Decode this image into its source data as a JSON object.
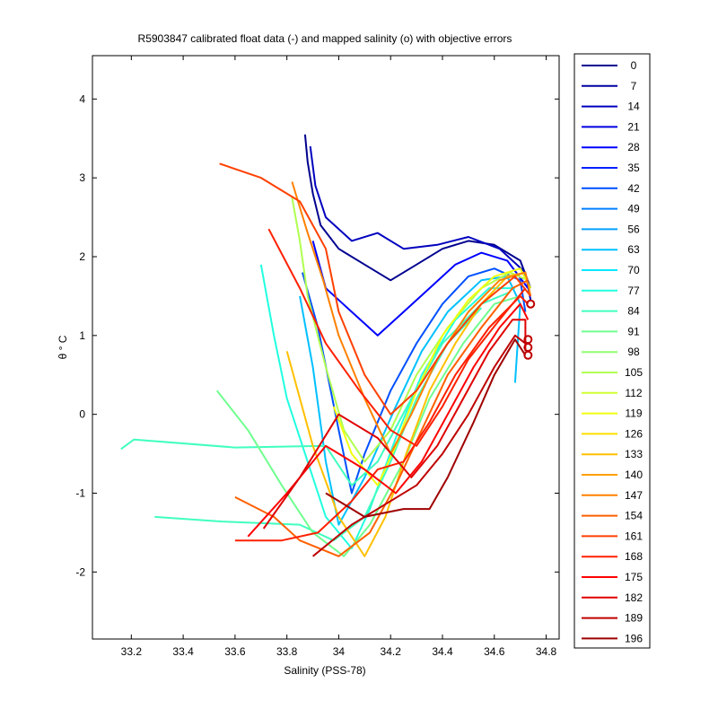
{
  "chart_data": {
    "type": "line",
    "title": "R5903847 calibrated float data (-) and mapped salinity (o) with objective errors",
    "xlabel": "Salinity (PSS-78)",
    "ylabel": "θ ° C",
    "xlim": [
      33.05,
      34.85
    ],
    "ylim": [
      -2.85,
      4.55
    ],
    "xticks": [
      33.2,
      33.4,
      33.6,
      33.8,
      34,
      34.2,
      34.4,
      34.6,
      34.8
    ],
    "yticks": [
      -2,
      -1,
      0,
      1,
      2,
      3,
      4
    ],
    "grid": false,
    "legend_position": "outside-right",
    "legend_entries": [
      "0",
      "7",
      "14",
      "21",
      "28",
      "35",
      "42",
      "49",
      "56",
      "63",
      "70",
      "77",
      "84",
      "91",
      "98",
      "105",
      "112",
      "119",
      "126",
      "133",
      "140",
      "147",
      "154",
      "161",
      "168",
      "175",
      "182",
      "189",
      "196"
    ],
    "legend_colors": [
      "#00008f",
      "#00009f",
      "#0000bf",
      "#0000df",
      "#0000ff",
      "#0020ff",
      "#0050ff",
      "#0080ff",
      "#00a0ff",
      "#00c0ff",
      "#00e8ff",
      "#20ffdf",
      "#40ffbf",
      "#70ff8f",
      "#90ff6f",
      "#b0ff4f",
      "#d0ff2f",
      "#f0ff0f",
      "#ffe000",
      "#ffc000",
      "#ffa000",
      "#ff8000",
      "#ff6000",
      "#ff4000",
      "#ff2000",
      "#ff0000",
      "#df0000",
      "#bf0000",
      "#9f0000"
    ],
    "series": [
      {
        "color": "#00008f",
        "points": [
          [
            33.87,
            3.55
          ],
          [
            33.88,
            3.2
          ],
          [
            33.9,
            2.8
          ],
          [
            33.93,
            2.4
          ],
          [
            34.0,
            2.1
          ],
          [
            34.1,
            1.9
          ],
          [
            34.2,
            1.7
          ],
          [
            34.3,
            1.9
          ],
          [
            34.4,
            2.1
          ],
          [
            34.5,
            2.2
          ],
          [
            34.6,
            2.15
          ],
          [
            34.7,
            1.95
          ],
          [
            34.74,
            1.6
          ]
        ]
      },
      {
        "color": "#0000bf",
        "points": [
          [
            33.89,
            3.4
          ],
          [
            33.91,
            2.9
          ],
          [
            33.95,
            2.5
          ],
          [
            34.05,
            2.2
          ],
          [
            34.15,
            2.3
          ],
          [
            34.25,
            2.1
          ],
          [
            34.38,
            2.15
          ],
          [
            34.5,
            2.25
          ],
          [
            34.62,
            2.1
          ],
          [
            34.72,
            1.8
          ],
          [
            34.74,
            1.45
          ]
        ]
      },
      {
        "color": "#0000ff",
        "points": [
          [
            33.9,
            2.2
          ],
          [
            33.95,
            1.6
          ],
          [
            34.05,
            1.3
          ],
          [
            34.15,
            1.0
          ],
          [
            34.25,
            1.3
          ],
          [
            34.35,
            1.6
          ],
          [
            34.45,
            1.9
          ],
          [
            34.55,
            2.05
          ],
          [
            34.65,
            1.95
          ],
          [
            34.73,
            1.6
          ]
        ]
      },
      {
        "color": "#0050ff",
        "points": [
          [
            33.86,
            1.8
          ],
          [
            33.92,
            1.1
          ],
          [
            34.0,
            -0.2
          ],
          [
            34.05,
            -1.0
          ],
          [
            34.1,
            -0.5
          ],
          [
            34.2,
            0.3
          ],
          [
            34.3,
            0.9
          ],
          [
            34.4,
            1.4
          ],
          [
            34.5,
            1.75
          ],
          [
            34.6,
            1.85
          ],
          [
            34.7,
            1.7
          ],
          [
            34.72,
            1.3
          ]
        ]
      },
      {
        "color": "#00c0ff",
        "points": [
          [
            33.85,
            1.5
          ],
          [
            33.9,
            0.6
          ],
          [
            33.95,
            -0.6
          ],
          [
            34.0,
            -1.4
          ],
          [
            34.1,
            -0.8
          ],
          [
            34.22,
            0.1
          ],
          [
            34.32,
            0.8
          ],
          [
            34.42,
            1.3
          ],
          [
            34.55,
            1.7
          ],
          [
            34.65,
            1.75
          ],
          [
            34.7,
            1.4
          ],
          [
            34.68,
            0.4
          ]
        ]
      },
      {
        "color": "#20ffdf",
        "points": [
          [
            33.7,
            1.9
          ],
          [
            33.75,
            1.0
          ],
          [
            33.8,
            0.2
          ],
          [
            33.88,
            -0.6
          ],
          [
            33.95,
            -1.3
          ],
          [
            34.05,
            -1.7
          ],
          [
            34.12,
            -1.2
          ],
          [
            34.22,
            -0.3
          ],
          [
            34.32,
            0.5
          ],
          [
            34.45,
            1.2
          ],
          [
            34.58,
            1.6
          ],
          [
            34.68,
            1.6
          ]
        ]
      },
      {
        "color": "#40ffbf",
        "points": [
          [
            33.16,
            -0.44
          ],
          [
            33.21,
            -0.32
          ],
          [
            33.6,
            -0.42
          ],
          [
            33.95,
            -0.4
          ],
          [
            34.05,
            -0.9
          ],
          [
            34.15,
            -0.6
          ],
          [
            34.28,
            0.2
          ],
          [
            34.4,
            0.9
          ],
          [
            34.55,
            1.4
          ],
          [
            34.66,
            1.55
          ]
        ]
      },
      {
        "color": "#40ffbf",
        "points": [
          [
            33.29,
            -1.3
          ],
          [
            33.55,
            -1.36
          ],
          [
            33.85,
            -1.4
          ],
          [
            33.98,
            -1.6
          ],
          [
            34.1,
            -1.3
          ],
          [
            34.2,
            -0.6
          ],
          [
            34.3,
            0.2
          ],
          [
            34.42,
            0.9
          ],
          [
            34.55,
            1.35
          ]
        ]
      },
      {
        "color": "#70ff8f",
        "points": [
          [
            33.53,
            0.3
          ],
          [
            33.65,
            -0.2
          ],
          [
            33.78,
            -0.9
          ],
          [
            33.9,
            -1.5
          ],
          [
            34.02,
            -1.8
          ],
          [
            34.12,
            -1.4
          ],
          [
            34.25,
            -0.6
          ],
          [
            34.35,
            0.2
          ],
          [
            34.48,
            0.9
          ],
          [
            34.6,
            1.4
          ],
          [
            34.7,
            1.5
          ]
        ]
      },
      {
        "color": "#b0ff4f",
        "points": [
          [
            33.82,
            2.75
          ],
          [
            33.85,
            2.2
          ],
          [
            33.88,
            1.5
          ],
          [
            33.95,
            0.6
          ],
          [
            34.02,
            -0.2
          ],
          [
            34.1,
            -0.6
          ],
          [
            34.2,
            -0.2
          ],
          [
            34.3,
            0.5
          ],
          [
            34.42,
            1.1
          ],
          [
            34.55,
            1.6
          ],
          [
            34.66,
            1.8
          ],
          [
            34.73,
            1.7
          ]
        ]
      },
      {
        "color": "#f0ff0f",
        "points": [
          [
            33.98,
            0.1
          ],
          [
            34.05,
            -0.5
          ],
          [
            34.15,
            -0.9
          ],
          [
            34.22,
            -0.4
          ],
          [
            34.3,
            0.3
          ],
          [
            34.4,
            1.0
          ],
          [
            34.5,
            1.45
          ],
          [
            34.6,
            1.75
          ],
          [
            34.7,
            1.85
          ],
          [
            34.74,
            1.6
          ]
        ]
      },
      {
        "color": "#ffc000",
        "points": [
          [
            33.8,
            0.8
          ],
          [
            33.9,
            -0.4
          ],
          [
            34.0,
            -1.3
          ],
          [
            34.1,
            -1.8
          ],
          [
            34.18,
            -1.3
          ],
          [
            34.26,
            -0.5
          ],
          [
            34.35,
            0.3
          ],
          [
            34.45,
            0.9
          ],
          [
            34.55,
            1.4
          ],
          [
            34.65,
            1.75
          ],
          [
            34.72,
            1.8
          ]
        ]
      },
      {
        "color": "#ff8000",
        "points": [
          [
            33.82,
            2.95
          ],
          [
            33.88,
            2.3
          ],
          [
            33.94,
            1.7
          ],
          [
            34.0,
            1.0
          ],
          [
            34.1,
            0.2
          ],
          [
            34.2,
            -0.5
          ],
          [
            34.28,
            0.0
          ],
          [
            34.38,
            0.7
          ],
          [
            34.5,
            1.3
          ],
          [
            34.62,
            1.7
          ],
          [
            34.72,
            1.8
          ],
          [
            34.74,
            1.5
          ]
        ]
      },
      {
        "color": "#ff6000",
        "points": [
          [
            33.6,
            -1.05
          ],
          [
            33.75,
            -1.3
          ],
          [
            33.85,
            -1.6
          ],
          [
            34.0,
            -1.8
          ],
          [
            34.12,
            -1.5
          ],
          [
            34.22,
            -0.9
          ],
          [
            34.32,
            -0.2
          ],
          [
            34.42,
            0.5
          ],
          [
            34.55,
            1.1
          ],
          [
            34.67,
            1.6
          ],
          [
            34.73,
            1.7
          ]
        ]
      },
      {
        "color": "#ff4000",
        "points": [
          [
            33.54,
            3.18
          ],
          [
            33.7,
            3.0
          ],
          [
            33.85,
            2.7
          ],
          [
            33.95,
            2.1
          ],
          [
            34.0,
            1.3
          ],
          [
            34.1,
            0.5
          ],
          [
            34.2,
            0.0
          ],
          [
            34.3,
            0.3
          ],
          [
            34.42,
            0.9
          ],
          [
            34.55,
            1.4
          ],
          [
            34.68,
            1.75
          ],
          [
            34.74,
            1.5
          ]
        ]
      },
      {
        "color": "#ff2000",
        "points": [
          [
            33.6,
            -1.6
          ],
          [
            33.78,
            -1.6
          ],
          [
            33.92,
            -1.5
          ],
          [
            34.05,
            -1.1
          ],
          [
            34.15,
            -0.7
          ],
          [
            34.25,
            -0.6
          ],
          [
            34.35,
            -0.1
          ],
          [
            34.45,
            0.5
          ],
          [
            34.58,
            1.1
          ],
          [
            34.7,
            1.5
          ],
          [
            34.73,
            1.4
          ]
        ]
      },
      {
        "color": "#ff2000",
        "points": [
          [
            33.73,
            2.35
          ],
          [
            33.85,
            1.6
          ],
          [
            33.95,
            0.9
          ],
          [
            34.08,
            0.3
          ],
          [
            34.2,
            -0.2
          ],
          [
            34.3,
            -0.4
          ],
          [
            34.4,
            0.1
          ],
          [
            34.5,
            0.7
          ],
          [
            34.62,
            1.2
          ],
          [
            34.72,
            1.6
          ]
        ]
      },
      {
        "color": "#ff0000",
        "points": [
          [
            33.65,
            -1.55
          ],
          [
            33.8,
            -1.0
          ],
          [
            33.95,
            -0.4
          ],
          [
            34.1,
            -0.7
          ],
          [
            34.22,
            -1.0
          ],
          [
            34.32,
            -0.6
          ],
          [
            34.42,
            0.0
          ],
          [
            34.52,
            0.6
          ],
          [
            34.62,
            1.1
          ],
          [
            34.7,
            1.4
          ],
          [
            34.73,
            1.2
          ]
        ]
      },
      {
        "color": "#df0000",
        "points": [
          [
            33.71,
            -1.45
          ],
          [
            33.85,
            -0.8
          ],
          [
            34.0,
            0.0
          ],
          [
            34.15,
            -0.3
          ],
          [
            34.28,
            -0.8
          ],
          [
            34.38,
            -0.4
          ],
          [
            34.48,
            0.2
          ],
          [
            34.58,
            0.8
          ],
          [
            34.67,
            1.2
          ],
          [
            34.72,
            1.2
          ],
          [
            34.72,
            0.8
          ]
        ]
      },
      {
        "color": "#bf0000",
        "points": [
          [
            33.9,
            -1.8
          ],
          [
            34.05,
            -1.4
          ],
          [
            34.2,
            -1.1
          ],
          [
            34.3,
            -0.9
          ],
          [
            34.4,
            -0.5
          ],
          [
            34.5,
            0.0
          ],
          [
            34.6,
            0.6
          ],
          [
            34.68,
            1.0
          ],
          [
            34.72,
            0.9
          ]
        ]
      },
      {
        "color": "#9f0000",
        "points": [
          [
            33.95,
            -1.0
          ],
          [
            34.1,
            -1.3
          ],
          [
            34.25,
            -1.2
          ],
          [
            34.35,
            -1.2
          ],
          [
            34.42,
            -0.8
          ],
          [
            34.52,
            -0.1
          ],
          [
            34.6,
            0.5
          ],
          [
            34.68,
            0.95
          ],
          [
            34.72,
            0.75
          ]
        ]
      }
    ]
  }
}
